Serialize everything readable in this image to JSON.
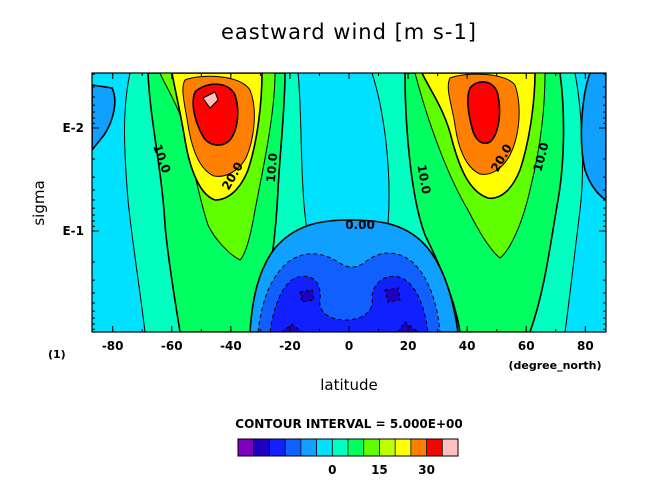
{
  "chart_data": {
    "type": "heatmap",
    "title": "eastward wind [m s-1]",
    "xlabel": "latitude",
    "xunit": "(degree_north)",
    "ylabel": "sigma",
    "yunit": "(1)",
    "x_ticks": [
      "-80",
      "-60",
      "-40",
      "-20",
      "0",
      "20",
      "40",
      "60",
      "80"
    ],
    "y_ticks": [
      "E-2",
      "E-1"
    ],
    "xlim": [
      -87,
      87
    ],
    "contour_interval_text": "CONTOUR INTERVAL = 5.000E+00",
    "contour_labels": [
      "10.0",
      "20.0",
      "10.0",
      "0.00",
      "10.0",
      "20.0",
      "10.0"
    ],
    "colorbar": {
      "ticks": [
        "0",
        "15",
        "30"
      ],
      "levels": [
        -25,
        -20,
        -15,
        -10,
        -5,
        0,
        5,
        10,
        15,
        20,
        25,
        30,
        35
      ],
      "colors": [
        "#8000c0",
        "#2000c0",
        "#1020ff",
        "#1060ff",
        "#10a0ff",
        "#00e0ff",
        "#00ffc0",
        "#00ff60",
        "#60ff00",
        "#c0ff00",
        "#ffff00",
        "#ff8000",
        "#ff0000",
        "#ffc0c0"
      ]
    },
    "series": [
      {
        "x": -45,
        "sigma": 0.012,
        "value": 35
      },
      {
        "x": 45,
        "sigma": 0.014,
        "value": 32
      },
      {
        "x": 0,
        "sigma": 0.1,
        "value": 0
      },
      {
        "x": -18,
        "sigma": 0.5,
        "value": -12
      },
      {
        "x": 15,
        "sigma": 0.5,
        "value": -12
      }
    ]
  }
}
